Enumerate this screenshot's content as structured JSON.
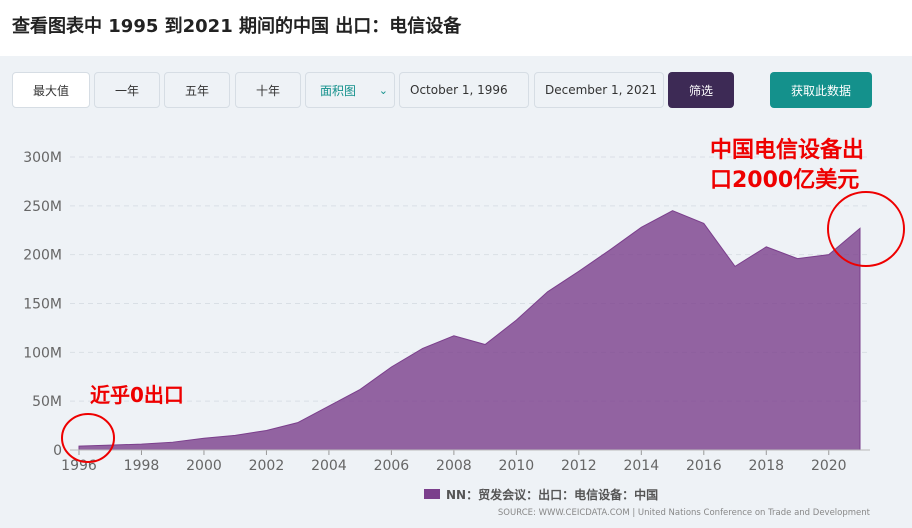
{
  "page_title": "查看图表中 1995 到2021 期间的中国 出口：电信设备",
  "controls": {
    "ranges": [
      "最大值",
      "一年",
      "五年",
      "十年"
    ],
    "chart_type": "面积图",
    "start_date": "October 1, 1996",
    "end_date": "December 1, 2021",
    "filter": "筛选",
    "download": "获取此数据"
  },
  "chart_data": {
    "type": "area",
    "color": "#7b3f8c",
    "x": [
      1996,
      1997,
      1998,
      1999,
      2000,
      2001,
      2002,
      2003,
      2004,
      2005,
      2006,
      2007,
      2008,
      2009,
      2010,
      2011,
      2012,
      2013,
      2014,
      2015,
      2016,
      2017,
      2018,
      2019,
      2020,
      2021
    ],
    "series": [
      {
        "name": "NN：贸发会议：出口：电信设备：中国",
        "color": "#7b3f8c",
        "values": [
          4000000,
          5000000,
          6000000,
          8000000,
          12000000,
          15000000,
          20000000,
          28000000,
          45000000,
          62000000,
          85000000,
          104000000,
          117000000,
          108000000,
          133000000,
          162000000,
          183000000,
          205000000,
          228000000,
          245000000,
          232000000,
          188000000,
          208000000,
          196000000,
          200000000,
          227000000
        ]
      }
    ],
    "xlim": [
      1996,
      2021
    ],
    "xticks": [
      1996,
      1998,
      2000,
      2002,
      2004,
      2006,
      2008,
      2010,
      2012,
      2014,
      2016,
      2018,
      2020
    ],
    "ylim": [
      0,
      300000000
    ],
    "yticks": [
      0,
      {
        "value": 50000000,
        "label": "50M"
      },
      {
        "value": 100000000,
        "label": "100M"
      },
      {
        "value": 150000000,
        "label": "150M"
      },
      {
        "value": 200000000,
        "label": "200M"
      },
      {
        "value": 250000000,
        "label": "250M"
      },
      {
        "value": 300000000,
        "label": "300M"
      }
    ],
    "grid": true,
    "annotations": [
      {
        "lines": [
          "中国电信设备出",
          "口2000亿美元"
        ]
      },
      {
        "lines": [
          "近乎0出口"
        ]
      }
    ],
    "source": "SOURCE: WWW.CEICDATA.COM | United Nations Conference on Trade and Development"
  }
}
